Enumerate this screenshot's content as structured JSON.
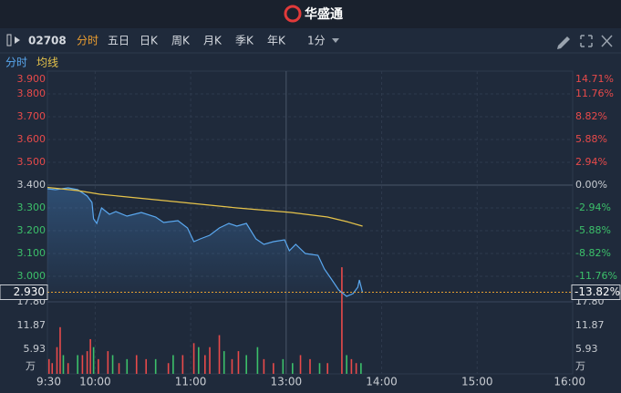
{
  "header": {
    "logo": "华盛通"
  },
  "toolbar": {
    "code": "02708",
    "tabs": [
      "分时",
      "五日",
      "日K",
      "周K",
      "月K",
      "季K",
      "年K"
    ],
    "interval": "1分"
  },
  "chart_data": {
    "type": "line",
    "up_color": "#e84a4a",
    "down_color": "#3cc06a",
    "flat_color": "#c8ccd2",
    "xlim": [
      0,
      330
    ],
    "xticks": [
      {
        "value": 0,
        "label": "9:30"
      },
      {
        "value": 30,
        "label": "10:00"
      },
      {
        "value": 90,
        "label": "11:00"
      },
      {
        "value": 150,
        "label": "13:00"
      },
      {
        "value": 210,
        "label": "14:00"
      },
      {
        "value": 270,
        "label": "15:00"
      },
      {
        "value": 330,
        "label": "16:00"
      }
    ],
    "ylim": [
      2.9,
      3.9
    ],
    "yticks": [
      {
        "value": 3.9,
        "label": "3.900"
      },
      {
        "value": 3.8,
        "label": "3.800"
      },
      {
        "value": 3.7,
        "label": "3.700"
      },
      {
        "value": 3.6,
        "label": "3.600"
      },
      {
        "value": 3.5,
        "label": "3.500"
      },
      {
        "value": 3.4,
        "label": "3.400"
      },
      {
        "value": 3.3,
        "label": "3.300"
      },
      {
        "value": 3.2,
        "label": "3.200"
      },
      {
        "value": 3.1,
        "label": "3.100"
      },
      {
        "value": 3.0,
        "label": "3.000"
      }
    ],
    "y2lim": [
      -14.71,
      14.71
    ],
    "y2ticks": [
      {
        "value": 14.71,
        "label": "14.71%"
      },
      {
        "value": 11.76,
        "label": "11.76%"
      },
      {
        "value": 8.82,
        "label": "8.82%"
      },
      {
        "value": 5.88,
        "label": "5.88%"
      },
      {
        "value": 2.94,
        "label": "2.94%"
      },
      {
        "value": 0,
        "label": "0.00%"
      },
      {
        "value": -2.94,
        "label": "-2.94%"
      },
      {
        "value": -5.88,
        "label": "-5.88%"
      },
      {
        "value": -8.82,
        "label": "-8.82%"
      },
      {
        "value": -11.76,
        "label": "-11.76%"
      }
    ],
    "last_price": {
      "value": 2.93,
      "label": "2.930"
    },
    "last_change": {
      "value": -13.82,
      "label": "-13.82%"
    },
    "series": [
      {
        "name": "分时",
        "color": "#5aa8f0",
        "x": [
          0,
          5,
          13,
          19,
          25,
          28,
          29,
          31,
          34,
          39,
          43,
          50,
          59,
          68,
          73,
          82,
          88,
          92,
          96,
          102,
          108,
          114,
          119,
          125,
          131,
          136,
          142,
          149,
          152,
          156,
          162,
          170,
          174,
          178,
          183,
          188,
          192,
          195,
          196,
          198
        ],
        "values": [
          3.384,
          3.38,
          3.388,
          3.38,
          3.352,
          3.324,
          3.252,
          3.232,
          3.3,
          3.272,
          3.284,
          3.264,
          3.28,
          3.26,
          3.236,
          3.244,
          3.212,
          3.152,
          3.164,
          3.18,
          3.212,
          3.232,
          3.22,
          3.232,
          3.164,
          3.14,
          3.152,
          3.16,
          3.112,
          3.14,
          3.1,
          3.092,
          3.032,
          2.992,
          2.94,
          2.912,
          2.924,
          2.952,
          2.984,
          2.928
        ]
      },
      {
        "name": "均线",
        "color": "#e6c34a",
        "x": [
          0,
          19,
          33,
          56,
          85,
          119,
          153,
          176,
          188,
          198
        ],
        "values": [
          3.39,
          3.376,
          3.36,
          3.344,
          3.324,
          3.3,
          3.28,
          3.26,
          3.24,
          3.22
        ]
      }
    ],
    "volume": {
      "ylim": [
        0,
        17.8
      ],
      "yticks": [
        {
          "value": 17.8,
          "label": "17.80"
        },
        {
          "value": 11.87,
          "label": "11.87"
        },
        {
          "value": 5.93,
          "label": "5.93"
        }
      ],
      "unit": "万",
      "x": [
        1,
        3,
        6,
        8,
        10,
        13,
        19,
        22,
        25,
        27,
        29,
        32,
        38,
        41,
        45,
        50,
        56,
        62,
        68,
        76,
        79,
        85,
        92,
        95,
        99,
        102,
        108,
        111,
        116,
        120,
        125,
        132,
        136,
        142,
        148,
        154,
        159,
        165,
        171,
        176,
        185,
        188,
        191,
        194,
        197
      ],
      "values": [
        3,
        2,
        6,
        11,
        4,
        2,
        4,
        4,
        5,
        8,
        6,
        3,
        5,
        4,
        2,
        3,
        4,
        3,
        3,
        2,
        4,
        4,
        7,
        6,
        4,
        6,
        9,
        5,
        3,
        5,
        4,
        6,
        3,
        2,
        3,
        2,
        4,
        3,
        2,
        2,
        26,
        4,
        3,
        2,
        2
      ],
      "colors": [
        "#e84a4a",
        "#e84a4a",
        "#e84a4a",
        "#e84a4a",
        "#3cc06a",
        "#e84a4a",
        "#3cc06a",
        "#e84a4a",
        "#e84a4a",
        "#e84a4a",
        "#3cc06a",
        "#e84a4a",
        "#e84a4a",
        "#3cc06a",
        "#e84a4a",
        "#3cc06a",
        "#e84a4a",
        "#e84a4a",
        "#3cc06a",
        "#e84a4a",
        "#3cc06a",
        "#e84a4a",
        "#e84a4a",
        "#3cc06a",
        "#e84a4a",
        "#e84a4a",
        "#e84a4a",
        "#3cc06a",
        "#e84a4a",
        "#e84a4a",
        "#3cc06a",
        "#3cc06a",
        "#e84a4a",
        "#e84a4a",
        "#3cc06a",
        "#3cc06a",
        "#e84a4a",
        "#e84a4a",
        "#3cc06a",
        "#e84a4a",
        "#e84a4a",
        "#3cc06a",
        "#e84a4a",
        "#e84a4a",
        "#3cc06a"
      ]
    }
  }
}
